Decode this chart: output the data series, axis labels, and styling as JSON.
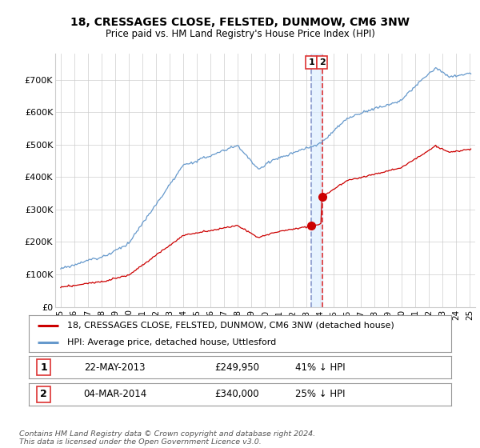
{
  "title1": "18, CRESSAGES CLOSE, FELSTED, DUNMOW, CM6 3NW",
  "title2": "Price paid vs. HM Land Registry's House Price Index (HPI)",
  "legend_line1": "18, CRESSAGES CLOSE, FELSTED, DUNMOW, CM6 3NW (detached house)",
  "legend_line2": "HPI: Average price, detached house, Uttlesford",
  "table_row1": [
    "1",
    "22-MAY-2013",
    "£249,950",
    "41% ↓ HPI"
  ],
  "table_row2": [
    "2",
    "04-MAR-2014",
    "£340,000",
    "25% ↓ HPI"
  ],
  "footer": "Contains HM Land Registry data © Crown copyright and database right 2024.\nThis data is licensed under the Open Government Licence v3.0.",
  "sale1_date": 2013.38,
  "sale1_price": 249950,
  "sale2_date": 2014.17,
  "sale2_price": 340000,
  "red_color": "#cc0000",
  "blue_color": "#6699cc",
  "vline1_color": "#8899cc",
  "vline2_color": "#dd3333",
  "shade_color": "#ddeeff",
  "background_color": "#ffffff",
  "grid_color": "#cccccc",
  "ylim": [
    0,
    780000
  ],
  "xlim_start": 1994.6,
  "xlim_end": 2025.4,
  "yticks": [
    0,
    100000,
    200000,
    300000,
    400000,
    500000,
    600000,
    700000
  ],
  "ytick_labels": [
    "£0",
    "£100K",
    "£200K",
    "£300K",
    "£400K",
    "£500K",
    "£600K",
    "£700K"
  ]
}
